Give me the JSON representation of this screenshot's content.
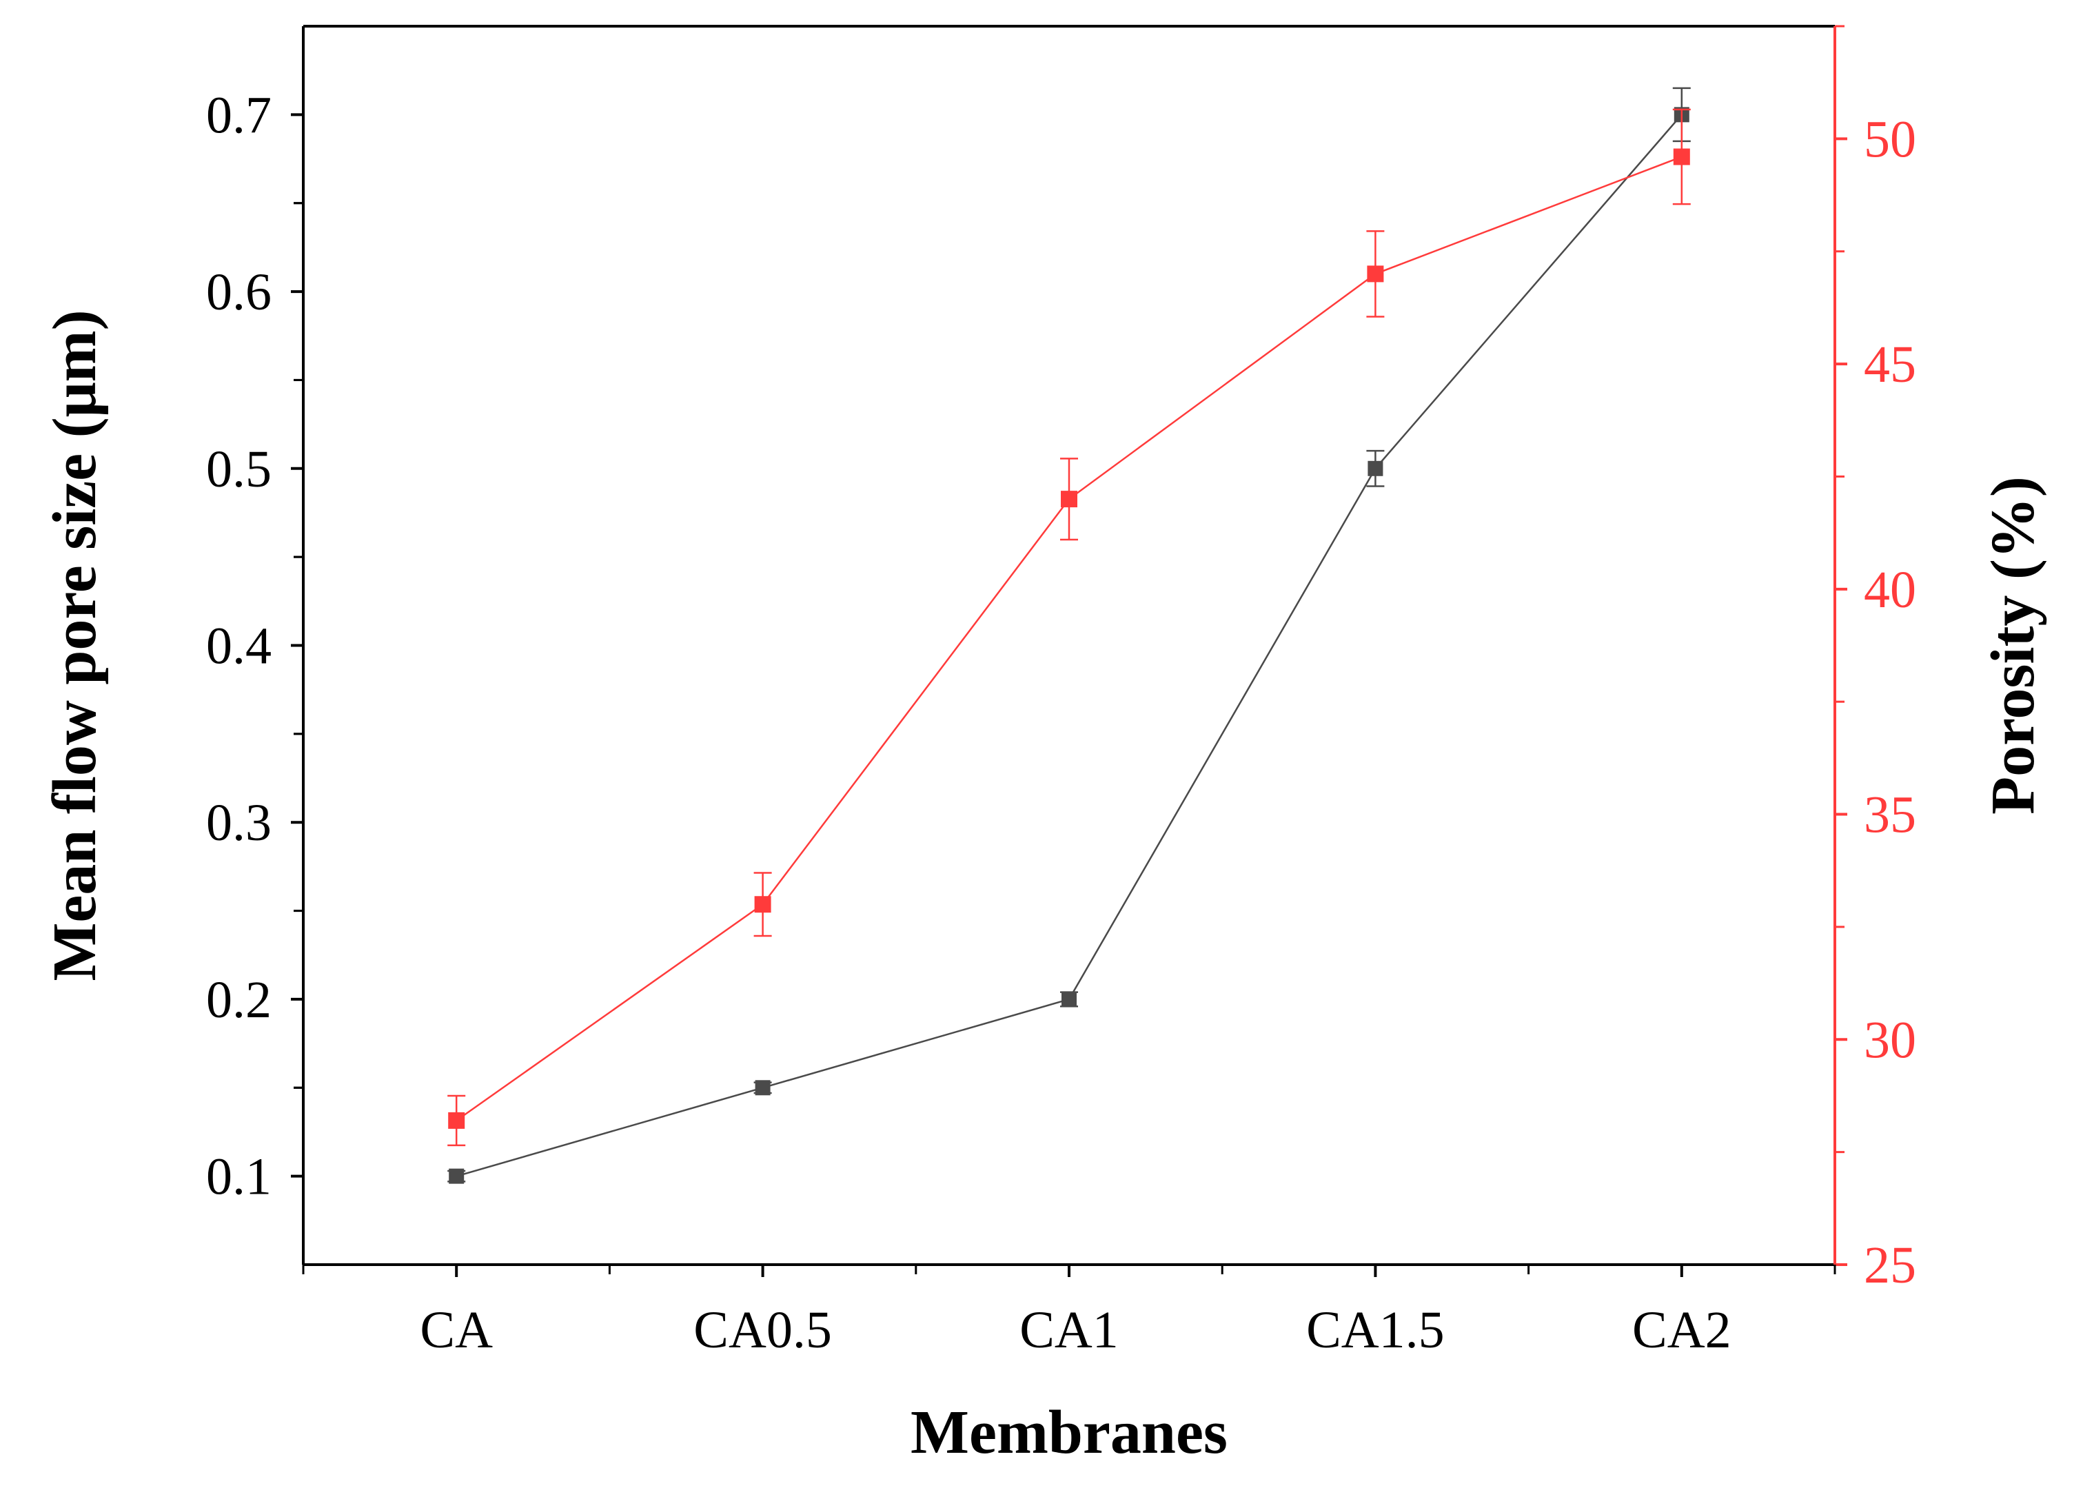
{
  "chart_data": {
    "type": "line",
    "title": "",
    "xlabel": "Membranes",
    "categories": [
      "CA",
      "CA0.5",
      "CA1",
      "CA1.5",
      "CA2"
    ],
    "y_left": {
      "label": "Mean flow pore size (μm)",
      "ylim": [
        0.05,
        0.75
      ],
      "ticks": [
        0.1,
        0.2,
        0.3,
        0.4,
        0.5,
        0.6,
        0.7
      ],
      "tick_labels": [
        "0.1",
        "0.2",
        "0.3",
        "0.4",
        "0.5",
        "0.6",
        "0.7"
      ],
      "color": "#000000"
    },
    "y_right": {
      "label": "Porosity (%)",
      "ylim": [
        25,
        52.5
      ],
      "ticks": [
        25,
        30,
        35,
        40,
        45,
        50
      ],
      "tick_labels": [
        "25",
        "30",
        "35",
        "40",
        "45",
        "50"
      ],
      "color": "#ff3b3b"
    },
    "series": [
      {
        "axis": "left",
        "color": "#4a4a4a",
        "marker": "square",
        "values": [
          0.1,
          0.15,
          0.2,
          0.5,
          0.7
        ],
        "errors": [
          0.003,
          0.003,
          0.004,
          0.01,
          0.015
        ]
      },
      {
        "axis": "right",
        "color": "#ff3b3b",
        "marker": "square",
        "values": [
          28.2,
          33.0,
          42.0,
          47.0,
          49.6
        ],
        "errors": [
          0.55,
          0.7,
          0.9,
          0.95,
          1.05
        ]
      }
    ],
    "grid": false,
    "legend": "none"
  }
}
